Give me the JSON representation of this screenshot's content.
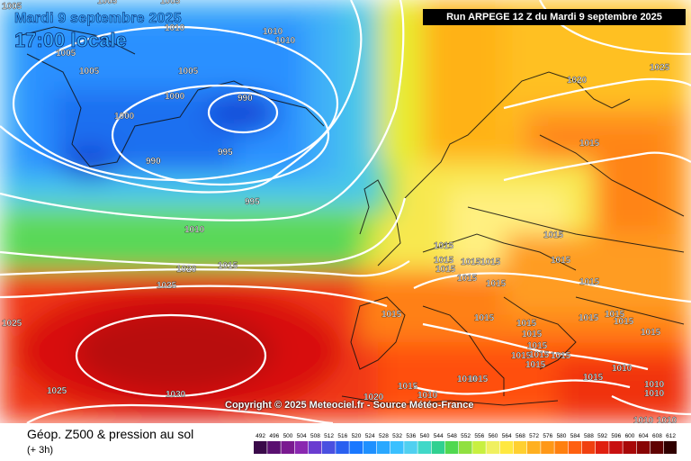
{
  "header": {
    "date_title": "Mardi 9 septembre 2025",
    "time_title": "17:00 locale",
    "run_label": "Run ARPEGE 12 Z du Mardi 9 septembre 2025"
  },
  "copyright": "Copyright © 2025 Meteociel.fr - Source Météo-France",
  "legend": {
    "title": "Géop. Z500 & pression au sol",
    "subtitle": "(+ 3h)",
    "scale_values": [
      492,
      496,
      500,
      504,
      508,
      512,
      516,
      520,
      524,
      528,
      532,
      536,
      540,
      544,
      548,
      552,
      556,
      560,
      564,
      568,
      572,
      576,
      580,
      584,
      588,
      592,
      596,
      600,
      604,
      608,
      612
    ],
    "scale_colors": [
      "#3a0a4a",
      "#5a1070",
      "#7a1a90",
      "#8a28b0",
      "#6a3cd0",
      "#4a50e0",
      "#2a60f0",
      "#1a78ff",
      "#1e90ff",
      "#2aa8ff",
      "#3ac0ff",
      "#50d0f0",
      "#40d8c8",
      "#30d090",
      "#50d850",
      "#90e040",
      "#c8f040",
      "#f0f060",
      "#ffe840",
      "#ffd030",
      "#ffb020",
      "#ff9818",
      "#ff8010",
      "#ff6010",
      "#f04010",
      "#e02010",
      "#c81010",
      "#a80808",
      "#880404",
      "#600202",
      "#300000"
    ]
  },
  "isobars": {
    "labels": [
      "1005",
      "1005",
      "1005",
      "1005",
      "1005",
      "1005",
      "1010",
      "1010",
      "1010",
      "1000",
      "1000",
      "990",
      "990",
      "995",
      "995",
      "1010",
      "1010",
      "1015",
      "1015",
      "1020",
      "1020",
      "1025",
      "1025",
      "1025",
      "1025",
      "1030",
      "1015",
      "1015",
      "1015",
      "1015",
      "1015",
      "1015",
      "1015",
      "1015",
      "1015",
      "1015",
      "1015",
      "1015",
      "1015",
      "1015",
      "1015",
      "1015",
      "1015",
      "1015",
      "1015",
      "1015",
      "1015",
      "1015",
      "1010",
      "1010",
      "1020",
      "1010",
      "1010",
      "1010",
      "1010",
      "1015",
      "1015",
      "1015",
      "1015"
    ]
  },
  "colors": {
    "low": "#1e8cff",
    "high": "#c80000",
    "isobar": "#ffffff"
  }
}
